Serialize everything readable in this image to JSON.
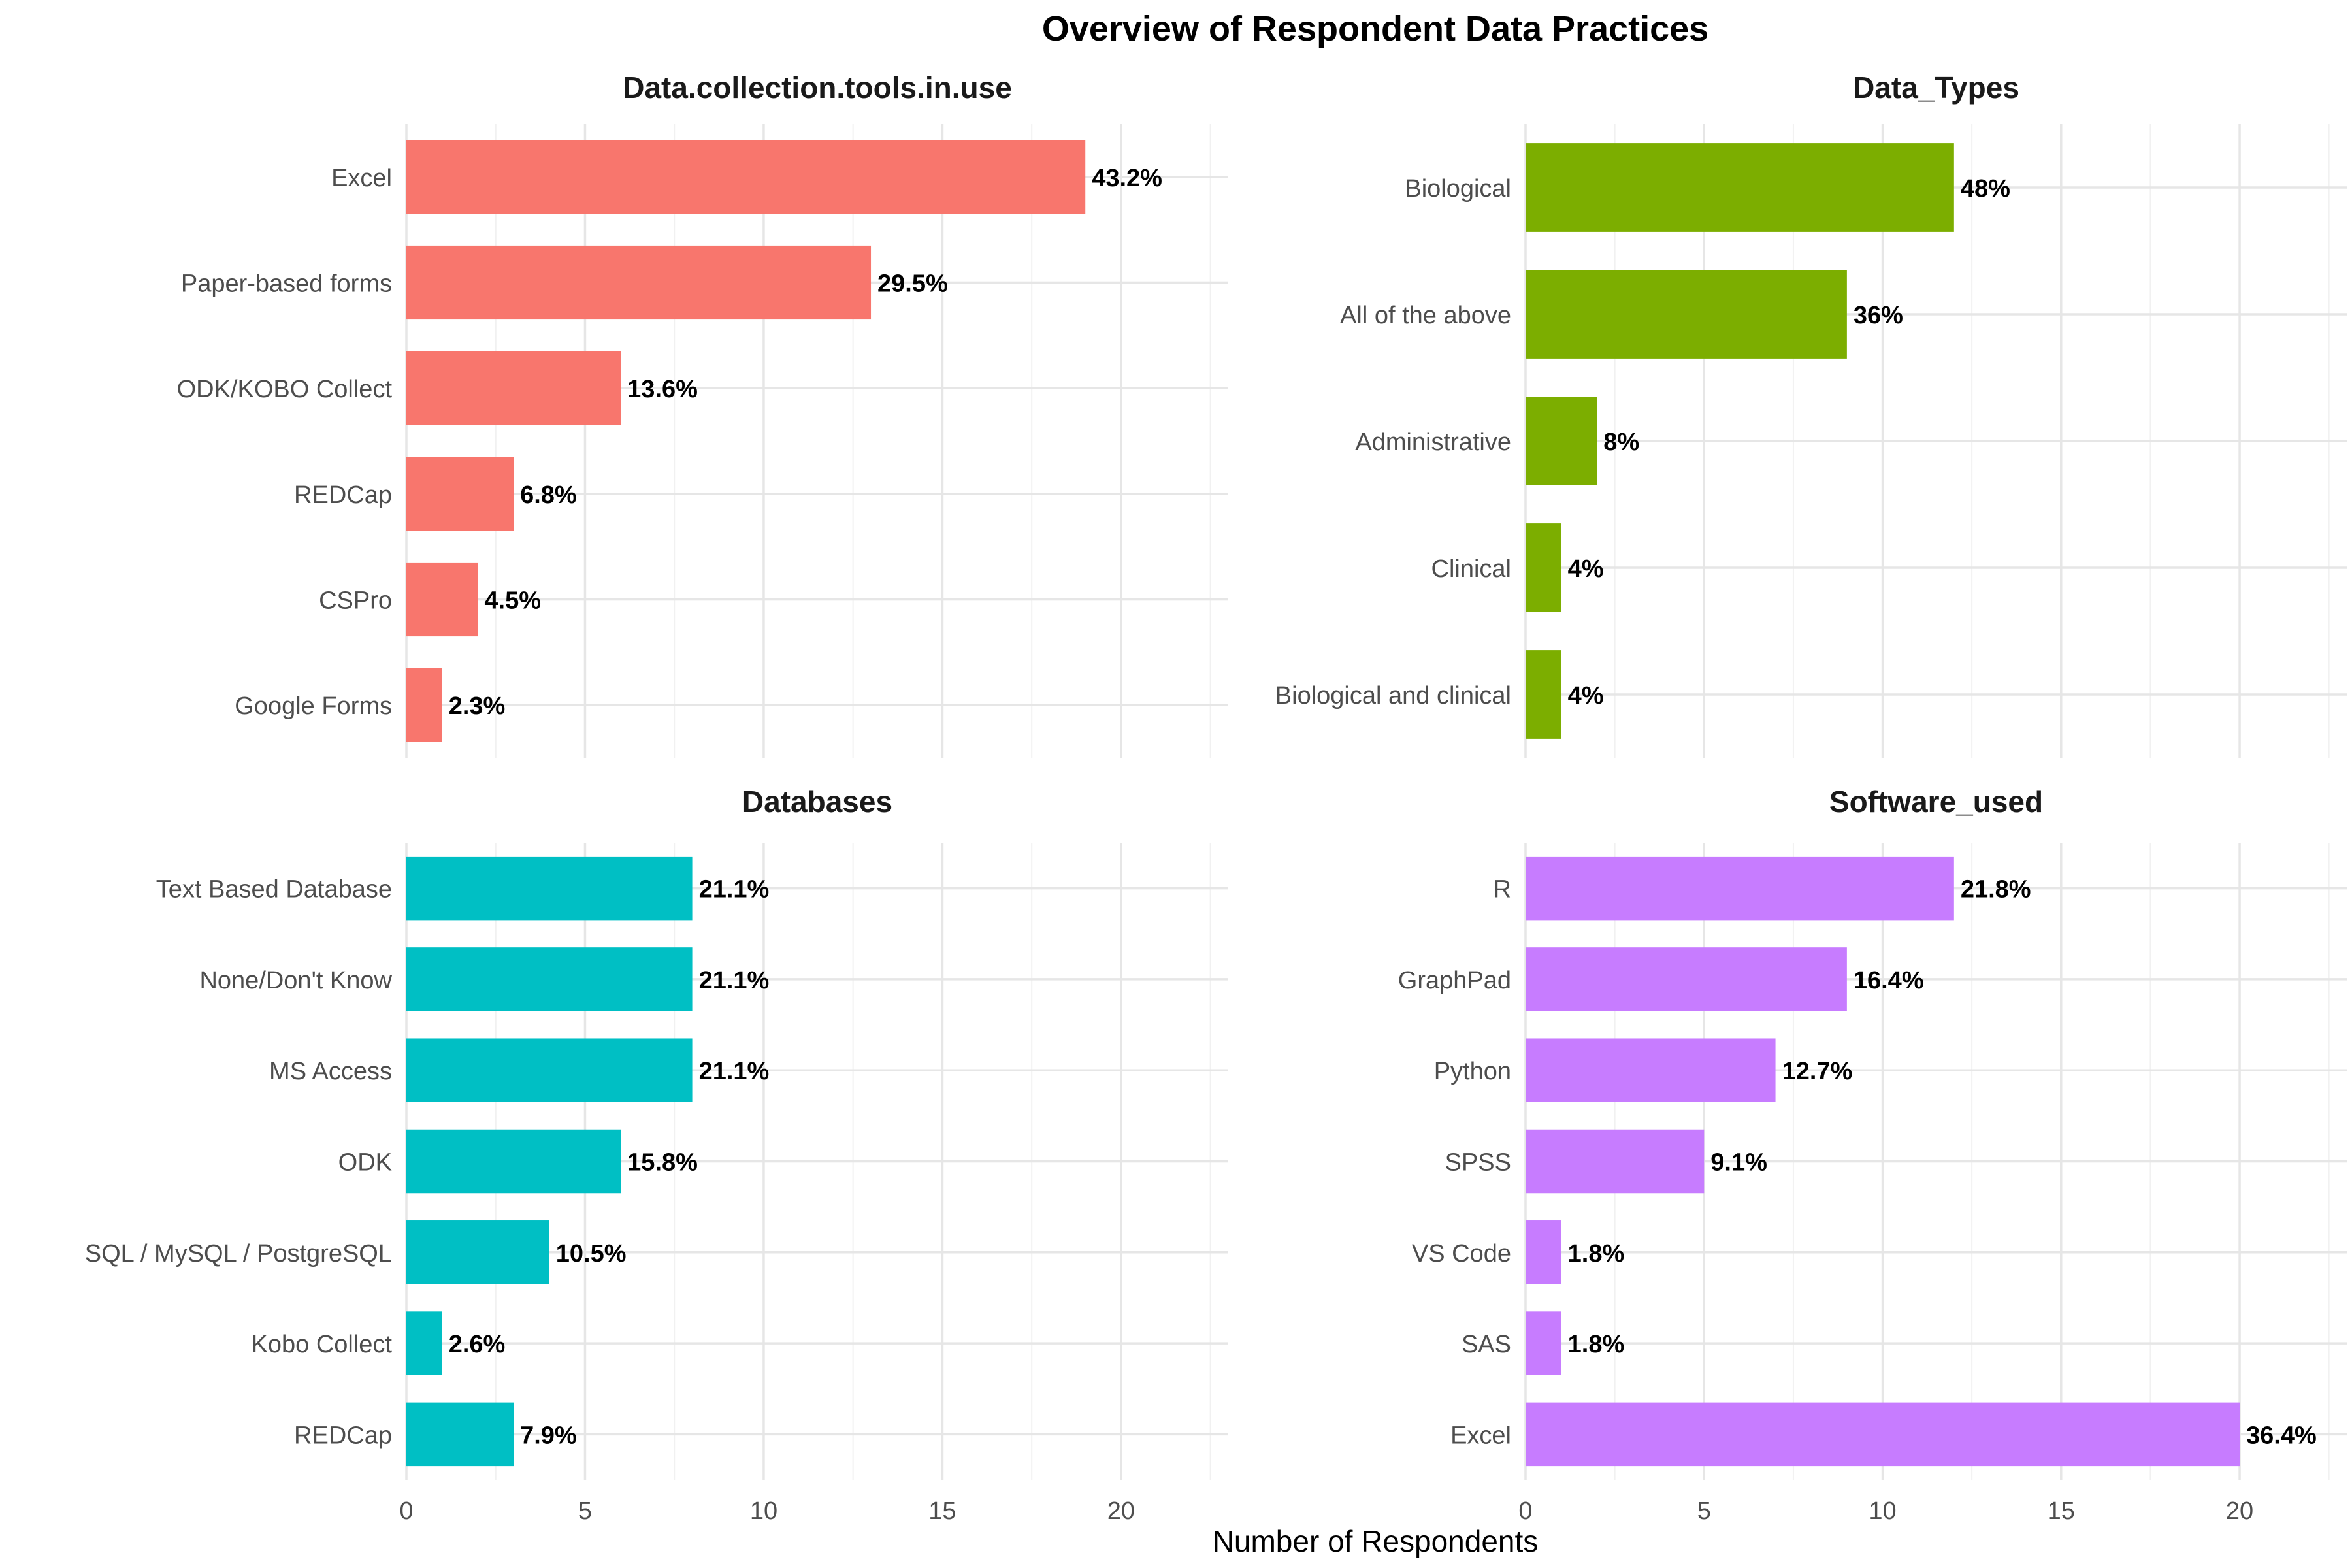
{
  "chart_data": {
    "type": "bar",
    "orientation": "horizontal",
    "title": "Overview of Respondent Data Practices",
    "xlabel": "Number of Respondents",
    "xlim": [
      0,
      23
    ],
    "xticks": [
      0,
      5,
      10,
      15,
      20
    ],
    "grid": true,
    "panels": [
      {
        "title": "Data.collection.tools.in.use",
        "color": "#F8766D",
        "categories": [
          "Excel",
          "Paper-based forms",
          "ODK/KOBO Collect",
          "REDCap",
          "CSPro",
          "Google Forms"
        ],
        "values": [
          19,
          13,
          6,
          3,
          2,
          1
        ],
        "labels": [
          "43.2%",
          "29.5%",
          "13.6%",
          "6.8%",
          "4.5%",
          "2.3%"
        ]
      },
      {
        "title": "Data_Types",
        "color": "#7CAE00",
        "categories": [
          "Biological",
          "All of the above",
          "Administrative",
          "Clinical",
          "Biological and clinical"
        ],
        "values": [
          12,
          9,
          2,
          1,
          1
        ],
        "labels": [
          "48%",
          "36%",
          "8%",
          "4%",
          "4%"
        ]
      },
      {
        "title": "Databases",
        "color": "#00BFC4",
        "categories": [
          "Text Based Database",
          "None/Don't Know",
          "MS Access",
          "ODK",
          "SQL / MySQL / PostgreSQL",
          "Kobo Collect",
          "REDCap"
        ],
        "values": [
          8,
          8,
          8,
          6,
          4,
          1,
          3
        ],
        "labels": [
          "21.1%",
          "21.1%",
          "21.1%",
          "15.8%",
          "10.5%",
          "2.6%",
          "7.9%"
        ]
      },
      {
        "title": "Software_used",
        "color": "#C77CFF",
        "categories": [
          "R",
          "GraphPad",
          "Python",
          "SPSS",
          "VS Code",
          "SAS",
          "Excel"
        ],
        "values": [
          12,
          9,
          7,
          5,
          1,
          1,
          20
        ],
        "labels": [
          "21.8%",
          "16.4%",
          "12.7%",
          "9.1%",
          "1.8%",
          "1.8%",
          "36.4%"
        ]
      }
    ]
  }
}
